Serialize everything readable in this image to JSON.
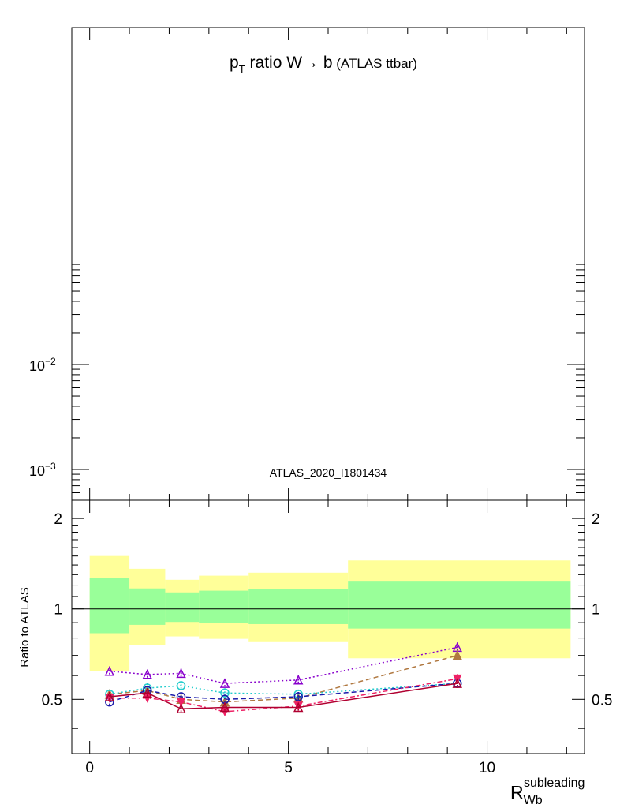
{
  "top_panel": {
    "title_main": "p",
    "title_sub": "T",
    "title_rest": " ratio W",
    "title_arrow": "→",
    "title_b": " b",
    "title_paren": " (ATLAS ttbar)",
    "analysis_label": "ATLAS_2020_I1801434",
    "y_scale": "log",
    "y_ticks": [
      {
        "base": "10",
        "exp": "−2",
        "value": 0.01
      },
      {
        "base": "10",
        "exp": "−3",
        "value": 0.001
      }
    ]
  },
  "bottom_panel": {
    "ylabel": "Ratio to ATLAS",
    "xlabel_main": "R",
    "xlabel_sub": "Wb",
    "xlabel_sup": "subleading"
  },
  "chart_data": {
    "type": "line",
    "xlim": [
      -0.45,
      12.45
    ],
    "ylim": [
      0.33,
      2.3
    ],
    "x_ticks": [
      "0",
      "5",
      "10"
    ],
    "x_tick_values": [
      0,
      5,
      10
    ],
    "y_ticks": [
      "0.5",
      "1",
      "2"
    ],
    "y_tick_values": [
      0.5,
      1,
      2
    ],
    "reference_line": 1,
    "uncertainty_bands": {
      "bin_edges": [
        0,
        1,
        1.9,
        2.75,
        4,
        6.5,
        12.1
      ],
      "inner": {
        "color": "#99ff99",
        "lower": [
          0.83,
          0.885,
          0.905,
          0.9,
          0.89,
          0.86
        ],
        "upper": [
          1.27,
          1.17,
          1.135,
          1.15,
          1.165,
          1.24
        ]
      },
      "outer": {
        "color": "#ffff99",
        "lower": [
          0.62,
          0.76,
          0.81,
          0.795,
          0.78,
          0.685
        ],
        "upper": [
          1.5,
          1.36,
          1.25,
          1.29,
          1.32,
          1.45
        ]
      }
    },
    "series": [
      {
        "color": "#8800cc",
        "dash": "2,3",
        "marker": "triangle-open",
        "x": [
          0.5,
          1.45,
          2.3,
          3.4,
          5.25,
          9.25
        ],
        "y": [
          0.62,
          0.605,
          0.61,
          0.565,
          0.58,
          0.745
        ]
      },
      {
        "color": "#b07840",
        "dash": "6,4",
        "marker": "triangle-filled",
        "x": [
          0.5,
          1.45,
          2.3,
          3.4,
          5.25,
          9.25
        ],
        "y": [
          0.52,
          0.535,
          0.5,
          0.49,
          0.505,
          0.7
        ]
      },
      {
        "color": "#22cccc",
        "dash": "2,3",
        "marker": "circle-open",
        "x": [
          0.5,
          1.45,
          2.3,
          3.4,
          5.25,
          9.25
        ],
        "y": [
          0.52,
          0.545,
          0.555,
          0.525,
          0.52,
          0.565
        ]
      },
      {
        "color": "#1a1aaa",
        "dash": "6,4",
        "marker": "circle-open",
        "x": [
          0.5,
          1.45,
          2.3,
          3.4,
          5.25,
          9.25
        ],
        "y": [
          0.49,
          0.535,
          0.51,
          0.5,
          0.51,
          0.565
        ]
      },
      {
        "color": "#ee2266",
        "dash": "6,3,2,3",
        "marker": "triangle-down-filled",
        "x": [
          0.5,
          1.45,
          2.3,
          3.4,
          5.25,
          9.25
        ],
        "y": [
          0.505,
          0.505,
          0.49,
          0.455,
          0.475,
          0.585
        ]
      },
      {
        "color": "#b00030",
        "dash": "",
        "marker": "triangle-open",
        "x": [
          0.5,
          1.45,
          2.3,
          3.4,
          5.25,
          9.25
        ],
        "y": [
          0.51,
          0.525,
          0.465,
          0.47,
          0.47,
          0.565
        ]
      }
    ]
  }
}
